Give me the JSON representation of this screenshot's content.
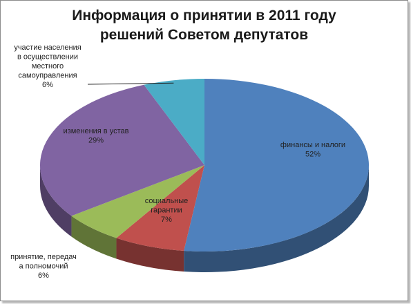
{
  "chart_data": {
    "type": "pie",
    "style": "3d",
    "title": [
      "Информация о принятии в 2011 году",
      "решений Советом депутатов"
    ],
    "slices": [
      {
        "label": [
          "финансы и налоги"
        ],
        "value": 52,
        "value_label": "52%",
        "color": "#4f81bd"
      },
      {
        "label": [
          "социальные",
          "гарантии"
        ],
        "value": 7,
        "value_label": "7%",
        "color": "#c0504d"
      },
      {
        "label": [
          "принятие, передач",
          "а полномочий"
        ],
        "value": 6,
        "value_label": "6%",
        "color": "#9bbb59"
      },
      {
        "label": [
          "изменения в устав"
        ],
        "value": 29,
        "value_label": "29%",
        "color": "#8064a2"
      },
      {
        "label": [
          "участие населения",
          "в осуществлении",
          "местного",
          "самоуправления"
        ],
        "value": 6,
        "value_label": "6%",
        "color": "#4bacc6"
      }
    ]
  }
}
